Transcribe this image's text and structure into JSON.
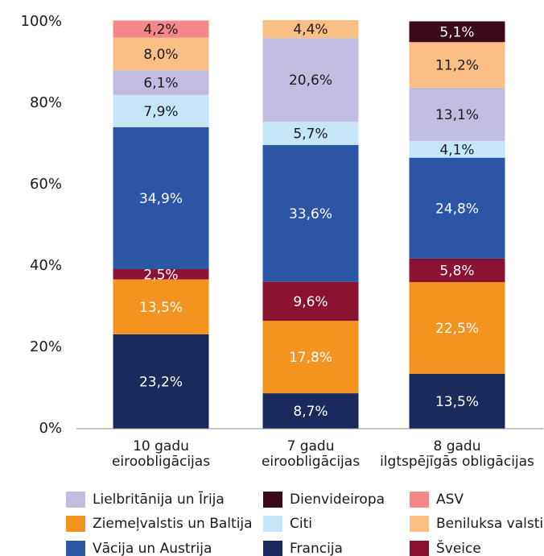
{
  "chart_data": {
    "type": "stacked_bar",
    "categories": [
      "10 gadu\neiroobligācijas",
      "7 gadu\neiroobligācijas",
      "8 gadu\nilgtspējīgās obligācijas"
    ],
    "ylim": [
      0,
      100
    ],
    "yticks": [
      {
        "value": 0,
        "label": "0%"
      },
      {
        "value": 20,
        "label": "20%"
      },
      {
        "value": 40,
        "label": "40%"
      },
      {
        "value": 60,
        "label": "60%"
      },
      {
        "value": 80,
        "label": "80%"
      },
      {
        "value": 100,
        "label": "100%"
      }
    ],
    "grid": false,
    "series": [
      {
        "name": "Francija",
        "color": "#1b2a5c",
        "values": [
          23.2,
          8.7,
          13.5
        ],
        "value_labels": [
          "23,2%",
          "8,7%",
          "13,5%"
        ]
      },
      {
        "name": "Ziemeļvalstis un Baltija",
        "color": "#f39320",
        "values": [
          13.5,
          17.8,
          22.5
        ],
        "value_labels": [
          "13,5%",
          "17,8%",
          "22,5%"
        ]
      },
      {
        "name": "Šveice",
        "color": "#8a1232",
        "values": [
          2.5,
          9.6,
          5.8
        ],
        "value_labels": [
          "2,5%",
          "9,6%",
          "5,8%"
        ]
      },
      {
        "name": "Vācija un Austrija",
        "color": "#2a56a5",
        "values": [
          34.9,
          33.6,
          24.8
        ],
        "value_labels": [
          "34,9%",
          "33,6%",
          "24,8%"
        ]
      },
      {
        "name": "Citi",
        "color": "#c6e6f8",
        "values": [
          7.9,
          5.7,
          4.1
        ],
        "value_labels": [
          "7,9%",
          "5,7%",
          "4,1%"
        ]
      },
      {
        "name": "Lielbritānija un Īrija",
        "color": "#c1bde0",
        "values": [
          6.1,
          20.6,
          13.1
        ],
        "value_labels": [
          "6,1%",
          "20,6%",
          "13,1%"
        ]
      },
      {
        "name": "Beniluksa valstis",
        "color": "#fbbf86",
        "values": [
          8.0,
          4.4,
          11.2
        ],
        "value_labels": [
          "8,0%",
          "4,4%",
          "11,2%"
        ]
      },
      {
        "name": "ASV",
        "color": "#f5878b",
        "values": [
          4.2,
          null,
          null
        ],
        "value_labels": [
          "4,2%",
          null,
          null
        ]
      },
      {
        "name": "Dienvideiropa",
        "color": "#3a0a18",
        "values": [
          null,
          null,
          5.1
        ],
        "value_labels": [
          null,
          null,
          "5,1%"
        ]
      }
    ]
  }
}
